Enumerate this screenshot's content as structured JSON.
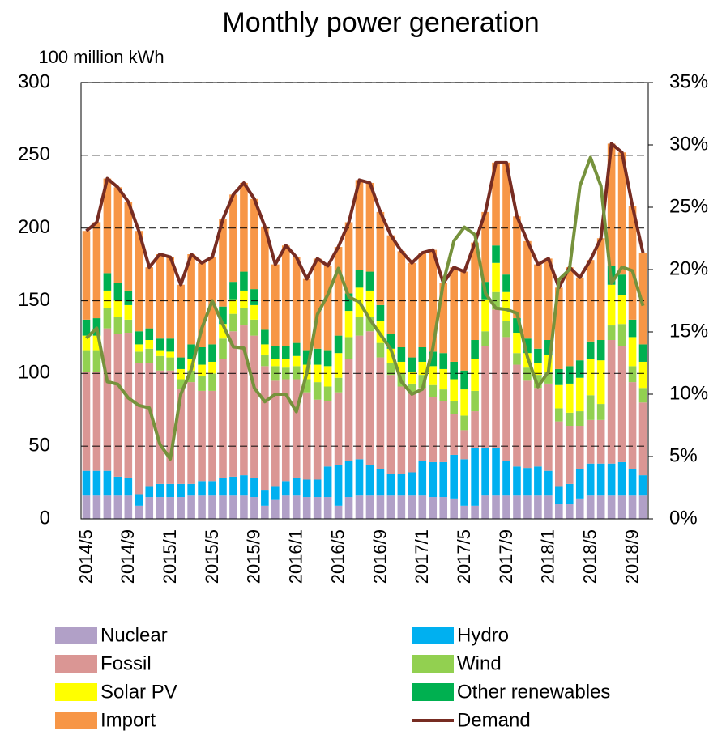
{
  "chart_data": {
    "type": "bar",
    "title": "Monthly power generation",
    "y_label": "100 million kWh",
    "categories": [
      "2014/5",
      null,
      null,
      null,
      "2014/9",
      null,
      null,
      null,
      "2015/1",
      null,
      null,
      null,
      "2015/5",
      null,
      null,
      null,
      "2015/9",
      null,
      null,
      null,
      "2016/1",
      null,
      null,
      null,
      "2016/5",
      null,
      null,
      null,
      "2016/9",
      null,
      null,
      null,
      "2017/1",
      null,
      null,
      null,
      "2017/5",
      null,
      null,
      null,
      "2017/9",
      null,
      null,
      null,
      "2018/1",
      null,
      null,
      null,
      "2018/5",
      null,
      null,
      null,
      "2018/9",
      null
    ],
    "series": [
      {
        "name": "Nuclear",
        "color": "#b1a0c7",
        "values": [
          16,
          16,
          16,
          16,
          16,
          9,
          15,
          15,
          15,
          15,
          16,
          16,
          16,
          16,
          16,
          16,
          15,
          9,
          13,
          16,
          16,
          15,
          15,
          15,
          9,
          15,
          16,
          16,
          16,
          16,
          16,
          16,
          16,
          15,
          15,
          14,
          9,
          9,
          16,
          16,
          16,
          16,
          16,
          16,
          16,
          10,
          10,
          14,
          16,
          16,
          16,
          16,
          16,
          16
        ]
      },
      {
        "name": "Hydro",
        "color": "#00b0f0",
        "values": [
          17,
          17,
          17,
          13,
          12,
          8,
          7,
          9,
          9,
          9,
          8,
          10,
          10,
          12,
          13,
          14,
          13,
          11,
          9,
          10,
          12,
          12,
          12,
          21,
          28,
          25,
          25,
          21,
          18,
          15,
          15,
          16,
          24,
          24,
          24,
          30,
          32,
          40,
          33,
          33,
          24,
          20,
          19,
          20,
          17,
          12,
          14,
          20,
          22,
          22,
          22,
          23,
          18,
          14
        ]
      },
      {
        "name": "Fossil",
        "color": "#da9694",
        "values": [
          68,
          68,
          98,
          98,
          100,
          90,
          85,
          78,
          78,
          65,
          70,
          62,
          62,
          82,
          100,
          103,
          98,
          85,
          73,
          70,
          68,
          60,
          55,
          45,
          50,
          70,
          85,
          92,
          77,
          68,
          60,
          54,
          50,
          45,
          42,
          28,
          20,
          25,
          70,
          95,
          85,
          70,
          60,
          54,
          60,
          45,
          40,
          30,
          30,
          30,
          85,
          80,
          60,
          50
        ]
      },
      {
        "name": "Wind",
        "color": "#92d050",
        "values": [
          15,
          15,
          14,
          12,
          9,
          8,
          10,
          10,
          9,
          7,
          8,
          10,
          12,
          14,
          12,
          12,
          11,
          8,
          10,
          8,
          9,
          9,
          12,
          10,
          10,
          15,
          13,
          10,
          10,
          8,
          9,
          7,
          9,
          8,
          8,
          9,
          10,
          14,
          10,
          12,
          11,
          8,
          9,
          9,
          8,
          9,
          9,
          10,
          17,
          11,
          10,
          15,
          11,
          10
        ]
      },
      {
        "name": "Solar PV",
        "color": "#ffff00",
        "values": [
          10,
          10,
          12,
          11,
          10,
          5,
          6,
          4,
          4,
          7,
          8,
          8,
          8,
          10,
          10,
          12,
          10,
          7,
          5,
          6,
          7,
          10,
          12,
          14,
          17,
          18,
          20,
          18,
          15,
          10,
          8,
          8,
          9,
          13,
          14,
          15,
          18,
          22,
          22,
          20,
          20,
          14,
          10,
          8,
          12,
          16,
          20,
          23,
          25,
          30,
          28,
          20,
          20,
          18
        ]
      },
      {
        "name": "Other renewables",
        "color": "#00b050",
        "values": [
          11,
          12,
          12,
          12,
          10,
          9,
          8,
          8,
          9,
          8,
          10,
          12,
          12,
          12,
          12,
          13,
          11,
          10,
          9,
          9,
          9,
          10,
          11,
          11,
          12,
          12,
          12,
          13,
          11,
          10,
          10,
          10,
          10,
          10,
          11,
          12,
          13,
          13,
          12,
          12,
          12,
          10,
          10,
          10,
          10,
          11,
          12,
          12,
          12,
          14,
          13,
          14,
          12,
          12
        ]
      },
      {
        "name": "Import",
        "color": "#f79646",
        "values": [
          61,
          66,
          65,
          66,
          61,
          69,
          42,
          58,
          56,
          50,
          62,
          58,
          60,
          60,
          60,
          61,
          62,
          71,
          56,
          69,
          59,
          49,
          62,
          58,
          61,
          49,
          62,
          61,
          64,
          68,
          66,
          65,
          65,
          70,
          48,
          65,
          68,
          67,
          48,
          57,
          77,
          70,
          67,
          58,
          56,
          56,
          68,
          57,
          56,
          70,
          84,
          84,
          78,
          63
        ]
      },
      {
        "name": "Demand",
        "type": "line",
        "color": "#772c22",
        "values": [
          198,
          204,
          234,
          228,
          218,
          198,
          173,
          182,
          180,
          161,
          182,
          176,
          180,
          206,
          223,
          231,
          220,
          201,
          175,
          188,
          180,
          165,
          179,
          174,
          187,
          204,
          233,
          231,
          211,
          195,
          184,
          176,
          183,
          185,
          162,
          173,
          170,
          190,
          211,
          245,
          245,
          208,
          191,
          175,
          179,
          159,
          173,
          166,
          178,
          193,
          258,
          252,
          215,
          183
        ]
      },
      {
        "type": "line",
        "axis": "y2",
        "color": "#76923c",
        "values": [
          14.5,
          15.3,
          11,
          10.8,
          9.7,
          9.1,
          8.9,
          6,
          4.8,
          10,
          12,
          15.3,
          17.5,
          15.6,
          13.8,
          13.7,
          10.5,
          9.4,
          10,
          10,
          8.6,
          11.7,
          16.4,
          18,
          20.1,
          17.8,
          17.4,
          16,
          14.8,
          13.6,
          11,
          10,
          10.4,
          13.7,
          19,
          22.3,
          23.4,
          22.8,
          18.1,
          16.9,
          16.8,
          16.5,
          13,
          10.6,
          11.8,
          19.2,
          20,
          26.7,
          29,
          26.7,
          18.9,
          20.2,
          19.9,
          17.1
        ]
      }
    ],
    "ylim": [
      0,
      300
    ],
    "yticks": [
      0,
      50,
      100,
      150,
      200,
      250,
      300
    ],
    "y2lim": [
      0,
      35
    ],
    "y2ticks": [
      {
        "value": 0,
        "label": "0%"
      },
      {
        "value": 5,
        "label": "5%"
      },
      {
        "value": 10,
        "label": "10%"
      },
      {
        "value": 15,
        "label": "15%"
      },
      {
        "value": 20,
        "label": "20%"
      },
      {
        "value": 25,
        "label": "25%"
      },
      {
        "value": 30,
        "label": "30%"
      },
      {
        "value": 35,
        "label": "35%"
      }
    ],
    "grid": true
  }
}
